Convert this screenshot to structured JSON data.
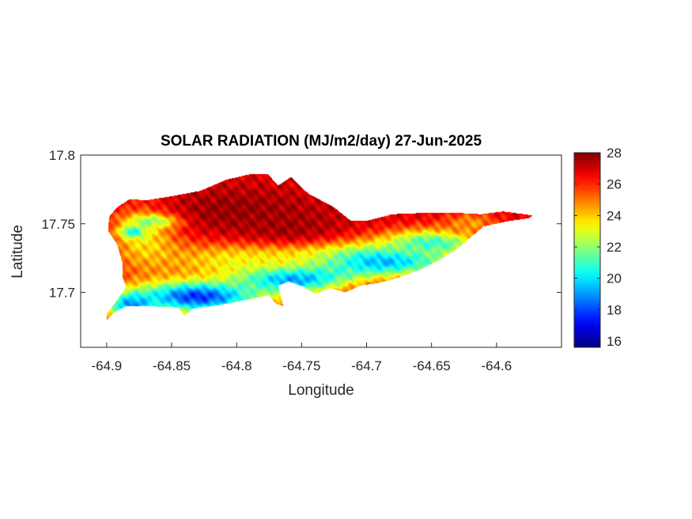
{
  "chart_data": {
    "type": "heatmap",
    "title": "SOLAR RADIATION (MJ/m2/day) 27-Jun-2025",
    "xlabel": "Longitude",
    "ylabel": "Latitude",
    "xlim": [
      -64.92,
      -64.55
    ],
    "ylim": [
      17.66,
      17.8
    ],
    "xticks": [
      -64.9,
      -64.85,
      -64.8,
      -64.75,
      -64.7,
      -64.65,
      -64.6
    ],
    "xtick_labels": [
      "-64.9",
      "-64.85",
      "-64.8",
      "-64.75",
      "-64.7",
      "-64.65",
      "-64.6"
    ],
    "yticks": [
      17.7,
      17.75,
      17.8
    ],
    "ytick_labels": [
      "17.7",
      "17.75",
      "17.8"
    ],
    "colorbar": {
      "range": [
        15.6,
        28
      ],
      "ticks": [
        16,
        18,
        20,
        22,
        24,
        26,
        28
      ],
      "tick_labels": [
        "16",
        "18",
        "20",
        "22",
        "24",
        "26",
        "28"
      ],
      "colormap": "jet"
    },
    "grid": false,
    "island_outline": [
      [
        -64.9,
        17.68
      ],
      [
        -64.893,
        17.686
      ],
      [
        -64.885,
        17.69
      ],
      [
        -64.868,
        17.69
      ],
      [
        -64.845,
        17.689
      ],
      [
        -64.84,
        17.683
      ],
      [
        -64.834,
        17.688
      ],
      [
        -64.812,
        17.691
      ],
      [
        -64.79,
        17.695
      ],
      [
        -64.775,
        17.698
      ],
      [
        -64.77,
        17.692
      ],
      [
        -64.764,
        17.69
      ],
      [
        -64.768,
        17.705
      ],
      [
        -64.76,
        17.708
      ],
      [
        -64.748,
        17.704
      ],
      [
        -64.74,
        17.699
      ],
      [
        -64.728,
        17.703
      ],
      [
        -64.716,
        17.7
      ],
      [
        -64.705,
        17.705
      ],
      [
        -64.69,
        17.707
      ],
      [
        -64.675,
        17.711
      ],
      [
        -64.66,
        17.716
      ],
      [
        -64.645,
        17.723
      ],
      [
        -64.63,
        17.732
      ],
      [
        -64.62,
        17.74
      ],
      [
        -64.61,
        17.748
      ],
      [
        -64.59,
        17.752
      ],
      [
        -64.575,
        17.754
      ],
      [
        -64.572,
        17.756
      ],
      [
        -64.595,
        17.759
      ],
      [
        -64.612,
        17.757
      ],
      [
        -64.63,
        17.758
      ],
      [
        -64.655,
        17.758
      ],
      [
        -64.68,
        17.757
      ],
      [
        -64.7,
        17.752
      ],
      [
        -64.712,
        17.752
      ],
      [
        -64.725,
        17.762
      ],
      [
        -64.735,
        17.767
      ],
      [
        -64.745,
        17.772
      ],
      [
        -64.758,
        17.784
      ],
      [
        -64.768,
        17.778
      ],
      [
        -64.776,
        17.786
      ],
      [
        -64.79,
        17.786
      ],
      [
        -64.808,
        17.782
      ],
      [
        -64.828,
        17.774
      ],
      [
        -64.85,
        17.77
      ],
      [
        -64.87,
        17.767
      ],
      [
        -64.882,
        17.768
      ],
      [
        -64.892,
        17.762
      ],
      [
        -64.898,
        17.755
      ],
      [
        -64.899,
        17.745
      ],
      [
        -64.892,
        17.735
      ],
      [
        -64.888,
        17.722
      ],
      [
        -64.888,
        17.712
      ],
      [
        -64.885,
        17.704
      ],
      [
        -64.89,
        17.697
      ],
      [
        -64.9,
        17.684
      ]
    ],
    "radiation_field": {
      "background": 26.8,
      "features": [
        {
          "lon": -64.87,
          "lat": 17.741,
          "value": 23.4,
          "lon_spread": 0.018,
          "lat_spread": 0.016
        },
        {
          "lon": -64.862,
          "lat": 17.752,
          "value": 20.2,
          "lon_spread": 0.014,
          "lat_spread": 0.0035
        },
        {
          "lon": -64.88,
          "lat": 17.744,
          "value": 19.8,
          "lon_spread": 0.007,
          "lat_spread": 0.003
        },
        {
          "lon": -64.758,
          "lat": 17.713,
          "value": 16.4,
          "lon_spread": 0.03,
          "lat_spread": 0.009
        },
        {
          "lon": -64.7,
          "lat": 17.723,
          "value": 17.2,
          "lon_spread": 0.045,
          "lat_spread": 0.008
        },
        {
          "lon": -64.65,
          "lat": 17.736,
          "value": 20.8,
          "lon_spread": 0.028,
          "lat_spread": 0.007
        },
        {
          "lon": -64.83,
          "lat": 17.697,
          "value": 17.6,
          "lon_spread": 0.035,
          "lat_spread": 0.009
        },
        {
          "lon": -64.88,
          "lat": 17.691,
          "value": 18.8,
          "lon_spread": 0.014,
          "lat_spread": 0.007
        },
        {
          "lon": -64.78,
          "lat": 17.724,
          "value": 23.2,
          "lon_spread": 0.06,
          "lat_spread": 0.01
        },
        {
          "lon": -64.62,
          "lat": 17.75,
          "value": 24.6,
          "lon_spread": 0.015,
          "lat_spread": 0.006
        },
        {
          "lon": -64.8,
          "lat": 17.76,
          "value": 27.8,
          "lon_spread": 0.04,
          "lat_spread": 0.012
        },
        {
          "lon": -64.76,
          "lat": 17.748,
          "value": 27.6,
          "lon_spread": 0.03,
          "lat_spread": 0.01
        }
      ]
    }
  }
}
